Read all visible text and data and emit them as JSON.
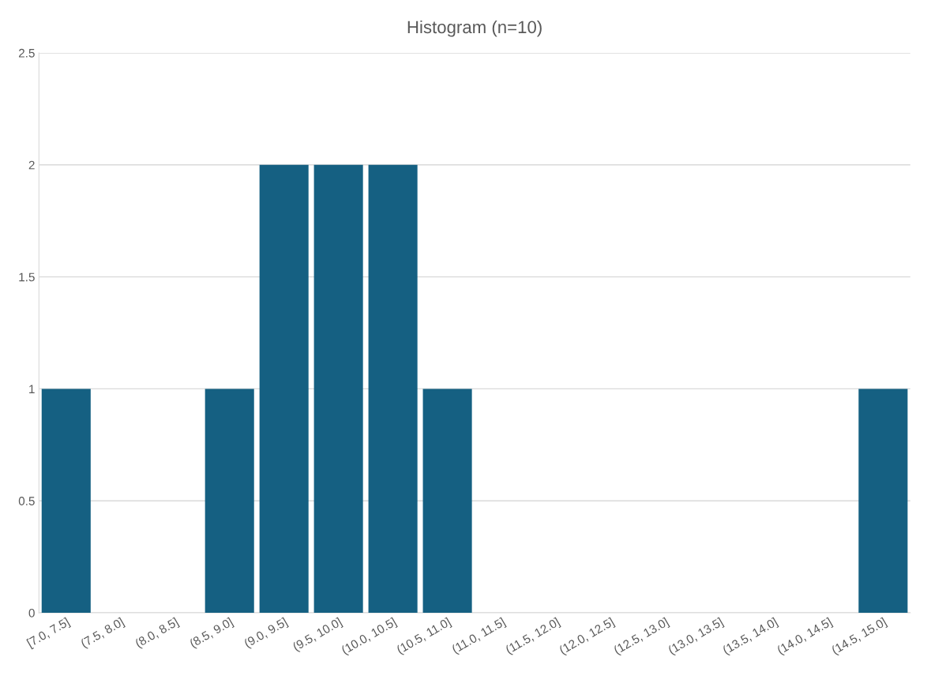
{
  "chart_data": {
    "type": "bar",
    "title": "Histogram (n=10)",
    "categories": [
      "[7.0, 7.5]",
      "(7.5, 8.0]",
      "(8.0, 8.5]",
      "(8.5, 9.0]",
      "(9.0, 9.5]",
      "(9.5, 10.0]",
      "(10.0, 10.5]",
      "(10.5, 11.0]",
      "(11.0, 11.5]",
      "(11.5, 12.0]",
      "(12.0, 12.5]",
      "(12.5, 13.0]",
      "(13.0, 13.5]",
      "(13.5, 14.0]",
      "(14.0, 14.5]",
      "(14.5, 15.0]"
    ],
    "values": [
      1,
      0,
      0,
      1,
      2,
      2,
      2,
      1,
      0,
      0,
      0,
      0,
      0,
      0,
      0,
      1
    ],
    "color": "#156082",
    "ylim": [
      0,
      2.5
    ],
    "yticks": [
      0,
      0.5,
      1,
      1.5,
      2,
      2.5
    ],
    "grid": "y"
  }
}
